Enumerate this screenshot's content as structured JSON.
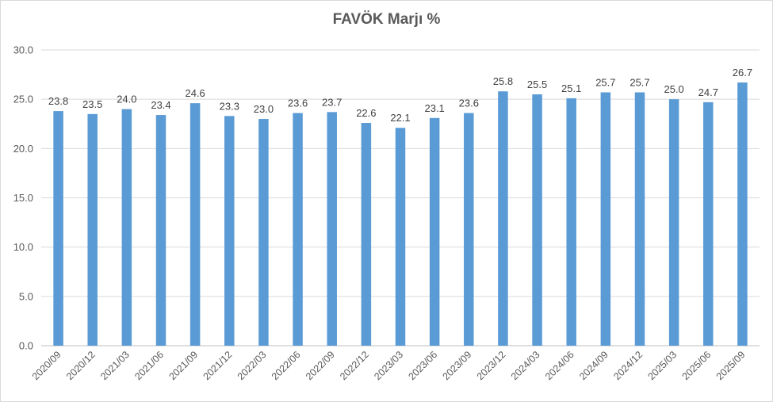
{
  "chart_data": {
    "type": "bar",
    "title": "FAVÖK Marjı %",
    "xlabel": "",
    "ylabel": "",
    "ylim": [
      0,
      30
    ],
    "yticks": [
      "0.0",
      "5.0",
      "10.0",
      "15.0",
      "20.0",
      "25.0",
      "30.0"
    ],
    "grid": true,
    "legend": "none",
    "bar_color": "#5b9bd5",
    "categories": [
      "2020/09",
      "2020/12",
      "2021/03",
      "2021/06",
      "2021/09",
      "2021/12",
      "2022/03",
      "2022/06",
      "2022/09",
      "2022/12",
      "2023/03",
      "2023/06",
      "2023/09",
      "2023/12",
      "2024/03",
      "2024/06",
      "2024/09",
      "2024/12",
      "2025/03",
      "2025/06",
      "2025/09"
    ],
    "values": [
      23.8,
      23.5,
      24.0,
      23.4,
      24.6,
      23.3,
      23.0,
      23.6,
      23.7,
      22.6,
      22.1,
      23.1,
      23.6,
      25.8,
      25.5,
      25.1,
      25.7,
      25.7,
      25.0,
      24.7,
      26.7
    ],
    "data_labels": [
      "23.8",
      "23.5",
      "24.0",
      "23.4",
      "24.6",
      "23.3",
      "23.0",
      "23.6",
      "23.7",
      "22.6",
      "22.1",
      "23.1",
      "23.6",
      "25.8",
      "25.5",
      "25.1",
      "25.7",
      "25.7",
      "25.0",
      "24.7",
      "26.7"
    ]
  }
}
